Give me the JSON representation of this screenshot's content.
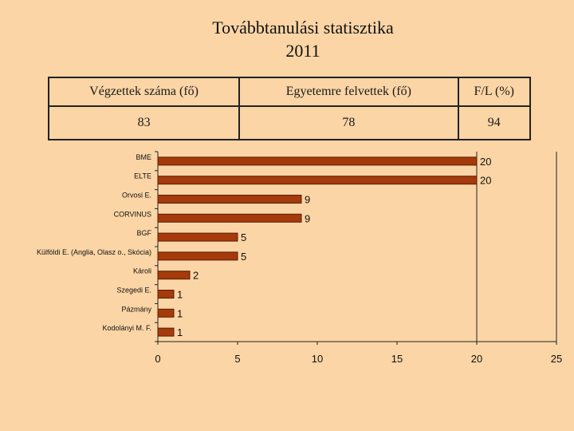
{
  "title": {
    "line1": "Továbbtanulási statisztika",
    "line2": "2011"
  },
  "summary_table": {
    "headers": [
      "Végzettek száma (fő)",
      "Egyetemre felvettek (fő)",
      "F/L (%)"
    ],
    "values": [
      "83",
      "78",
      "94"
    ]
  },
  "colors": {
    "background": "#FBD5A5",
    "bar_fill": "#A53A0B",
    "bar_stroke": "#5A1E05",
    "axis": "#222222"
  },
  "chart_data": {
    "type": "bar",
    "orientation": "horizontal",
    "categories": [
      "BME",
      "ELTE",
      "Orvosi E.",
      "CORVINUS",
      "BGF",
      "Külföldi E. (Anglia, Olasz o., Skócia)",
      "Károli",
      "Szegedi E.",
      "Pázmány",
      "Kodolányi M. F."
    ],
    "values": [
      20,
      20,
      9,
      9,
      5,
      5,
      2,
      1,
      1,
      1
    ],
    "data_labels": [
      "20",
      "20",
      "9",
      "9",
      "5",
      "5",
      "2",
      "1",
      "1",
      "1"
    ],
    "title": "",
    "xlabel": "",
    "ylabel": "",
    "xlim": [
      0,
      25
    ],
    "x_ticks": [
      0,
      5,
      10,
      15,
      20,
      25
    ],
    "grid": "vertical line at 20",
    "legend": "none"
  }
}
